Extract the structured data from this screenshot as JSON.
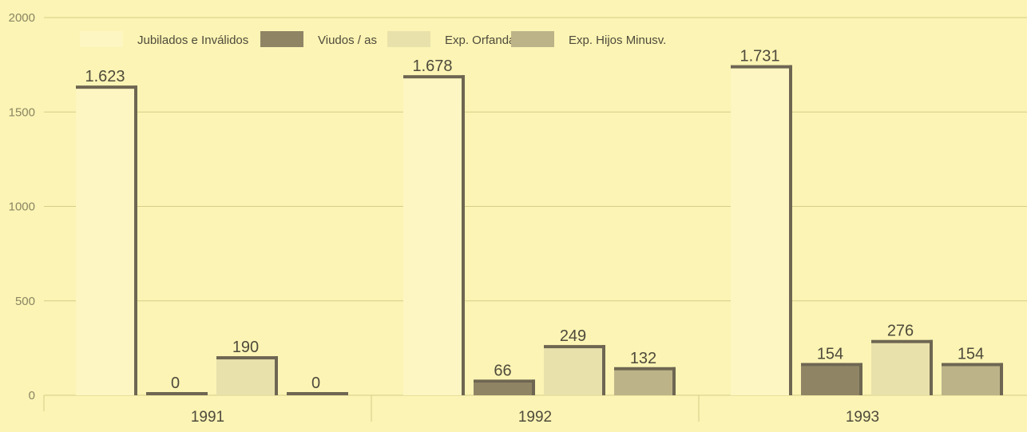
{
  "colors": {
    "background": "#fbf4b4",
    "grid": "#d6cd86",
    "axis_text": "#8a8563",
    "value_text": "#4f4a3c",
    "bar_edge": "#6e6652"
  },
  "chart_data": {
    "type": "bar",
    "title": "",
    "xlabel": "",
    "ylabel": "",
    "categories": [
      "1991",
      "1992",
      "1993"
    ],
    "ylim": [
      0,
      2000
    ],
    "yticks": [
      "0",
      "500",
      "1000",
      "1500",
      "2000"
    ],
    "grid": true,
    "legend_position": "top",
    "series": [
      {
        "name": "Jubilados e Inválidos",
        "color": "#fdf6c2",
        "values": [
          1623,
          1678,
          1731
        ],
        "labels": [
          "1.623",
          "1.678",
          "1.731"
        ]
      },
      {
        "name": "Viudos / as",
        "color": "#8f8565",
        "values": [
          0,
          66,
          154
        ],
        "labels": [
          "0",
          "66",
          "154"
        ]
      },
      {
        "name": "Exp. Orfandad",
        "color": "#e9e1ab",
        "values": [
          190,
          249,
          276
        ],
        "labels": [
          "190",
          "249",
          "276"
        ]
      },
      {
        "name": "Exp. Hijos Minusv.",
        "color": "#bdb389",
        "values": [
          0,
          132,
          154
        ],
        "labels": [
          "0",
          "132",
          "154"
        ]
      }
    ]
  }
}
